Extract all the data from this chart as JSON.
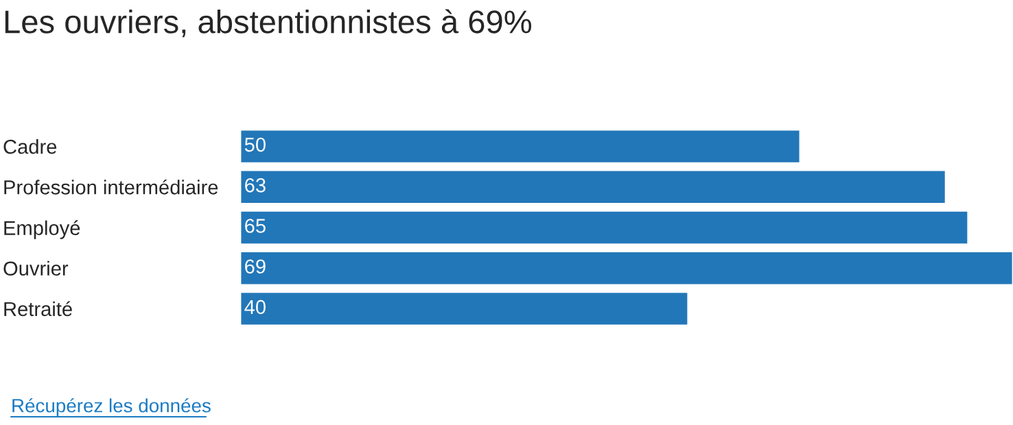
{
  "chart_data": {
    "type": "bar",
    "orientation": "horizontal",
    "title": "Les ouvriers, abstentionnistes à 69%",
    "categories": [
      "Cadre",
      "Profession intermédiaire",
      "Employé",
      "Ouvrier",
      "Retraité"
    ],
    "values": [
      50,
      63,
      65,
      69,
      40
    ],
    "color": "#2277b8",
    "data_labels": true,
    "grid": false,
    "legend": false,
    "annotations": [
      "Récupérez les données"
    ]
  }
}
